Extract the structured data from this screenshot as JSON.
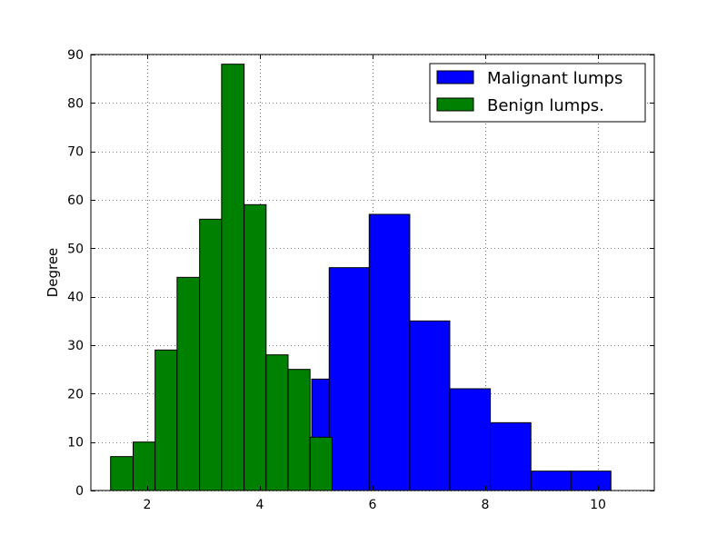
{
  "chart_data": {
    "type": "bar",
    "title": "",
    "xlabel": "",
    "ylabel": "Degree",
    "xlim": [
      1,
      11
    ],
    "ylim": [
      0,
      90
    ],
    "xticks": [
      2,
      4,
      6,
      8,
      10
    ],
    "yticks": [
      0,
      10,
      20,
      30,
      40,
      50,
      60,
      70,
      80,
      90
    ],
    "grid": true,
    "legend_position": "top-right",
    "series": [
      {
        "name": "Malignant lumps",
        "color": "#0000ff",
        "bins": [
          {
            "x0": 4.92,
            "x1": 5.23,
            "value": 23
          },
          {
            "x0": 5.23,
            "x1": 5.94,
            "value": 46
          },
          {
            "x0": 5.94,
            "x1": 6.66,
            "value": 57
          },
          {
            "x0": 6.66,
            "x1": 7.37,
            "value": 35
          },
          {
            "x0": 7.37,
            "x1": 8.09,
            "value": 21
          },
          {
            "x0": 8.09,
            "x1": 8.81,
            "value": 14
          },
          {
            "x0": 8.81,
            "x1": 9.52,
            "value": 4
          },
          {
            "x0": 9.52,
            "x1": 10.23,
            "value": 4
          }
        ]
      },
      {
        "name": "Benign lumps.",
        "color": "#008000",
        "bins": [
          {
            "x0": 1.35,
            "x1": 1.75,
            "value": 7
          },
          {
            "x0": 1.75,
            "x1": 2.14,
            "value": 10
          },
          {
            "x0": 2.14,
            "x1": 2.53,
            "value": 29
          },
          {
            "x0": 2.53,
            "x1": 2.93,
            "value": 44
          },
          {
            "x0": 2.93,
            "x1": 3.32,
            "value": 56
          },
          {
            "x0": 3.32,
            "x1": 3.72,
            "value": 88
          },
          {
            "x0": 3.72,
            "x1": 4.11,
            "value": 59
          },
          {
            "x0": 4.11,
            "x1": 4.5,
            "value": 28
          },
          {
            "x0": 4.5,
            "x1": 4.89,
            "value": 25
          },
          {
            "x0": 4.89,
            "x1": 5.28,
            "value": 11
          }
        ]
      }
    ]
  }
}
